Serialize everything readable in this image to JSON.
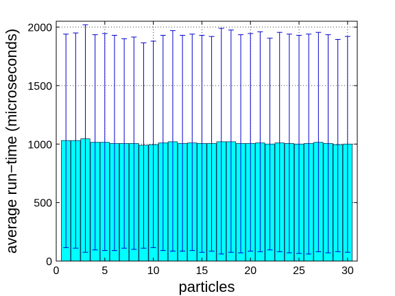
{
  "chart_data": {
    "type": "bar",
    "title": "",
    "xlabel": "particles",
    "ylabel": "average run−time (microseconds)",
    "xlim": [
      0,
      31
    ],
    "ylim": [
      0,
      2050
    ],
    "xticks": [
      0,
      5,
      10,
      15,
      20,
      25,
      30
    ],
    "yticks": [
      0,
      500,
      1000,
      1500,
      2000
    ],
    "grid": true,
    "bar_color": "#00ffff",
    "error_color": "#0000cc",
    "x": [
      1,
      2,
      3,
      4,
      5,
      6,
      7,
      8,
      9,
      10,
      11,
      12,
      13,
      14,
      15,
      16,
      17,
      18,
      19,
      20,
      21,
      22,
      23,
      24,
      25,
      26,
      27,
      28,
      29,
      30
    ],
    "values": [
      1030,
      1030,
      1045,
      1015,
      1015,
      1005,
      1005,
      1005,
      990,
      995,
      1010,
      1020,
      1005,
      1010,
      1005,
      1005,
      1020,
      1020,
      1005,
      1005,
      1010,
      1000,
      1010,
      1005,
      1000,
      1005,
      1015,
      1005,
      995,
      1000
    ],
    "err_upper": [
      1940,
      1950,
      2020,
      1935,
      1945,
      1930,
      1900,
      1915,
      1865,
      1880,
      1930,
      1970,
      1930,
      1940,
      1930,
      1920,
      1990,
      1975,
      1935,
      1945,
      1960,
      1905,
      1955,
      1940,
      1930,
      1940,
      1955,
      1935,
      1895,
      1920
    ],
    "err_lower": [
      115,
      110,
      75,
      95,
      90,
      90,
      110,
      100,
      110,
      115,
      90,
      85,
      85,
      90,
      75,
      85,
      60,
      75,
      70,
      85,
      80,
      95,
      80,
      70,
      65,
      60,
      80,
      70,
      80,
      75
    ]
  }
}
